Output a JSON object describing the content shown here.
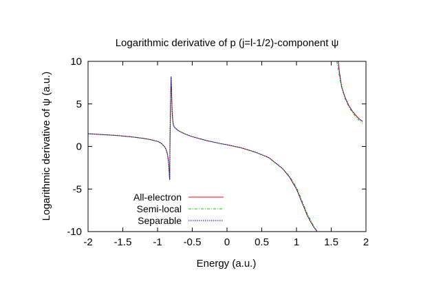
{
  "chart_data": {
    "type": "line",
    "title": "Logarithmic derivative of p (j=l-1/2)-component ψ",
    "xlabel": "Energy (a.u.)",
    "ylabel": "Logarithmic derivative of ψ (a.u.)",
    "xlim": [
      -2,
      2
    ],
    "ylim": [
      -10,
      10
    ],
    "grid": false,
    "legend_position": "bottom-left",
    "xticks": [
      {
        "value": -2,
        "label": "-2"
      },
      {
        "value": -1.5,
        "label": "-1.5"
      },
      {
        "value": -1,
        "label": "-1"
      },
      {
        "value": -0.5,
        "label": "-0.5"
      },
      {
        "value": 0,
        "label": "0"
      },
      {
        "value": 0.5,
        "label": "0.5"
      },
      {
        "value": 1,
        "label": "1"
      },
      {
        "value": 1.5,
        "label": "1.5"
      },
      {
        "value": 2,
        "label": "2"
      }
    ],
    "yticks": [
      {
        "value": -10,
        "label": "-10"
      },
      {
        "value": -5,
        "label": "-5"
      },
      {
        "value": 0,
        "label": "0"
      },
      {
        "value": 5,
        "label": "5"
      },
      {
        "value": 10,
        "label": "10"
      }
    ],
    "series": [
      {
        "name": "All-electron",
        "color": "#ff0000",
        "dash": "solid",
        "x": [
          -2,
          -1.8,
          -1.6,
          -1.4,
          -1.2,
          -1.1,
          -1.0,
          -0.95,
          -0.9,
          -0.88,
          -0.86,
          -0.85,
          -0.84,
          -0.835,
          -0.83,
          -0.825,
          -0.82,
          -0.815,
          -0.81,
          -0.805,
          -0.8,
          -0.795,
          -0.79,
          -0.785,
          -0.78,
          -0.775,
          -0.77,
          -0.76,
          -0.75,
          -0.7,
          -0.6,
          -0.5,
          -0.3,
          -0.1,
          0,
          0.2,
          0.4,
          0.6,
          0.8,
          0.9,
          1.0,
          1.05,
          1.1,
          1.15,
          1.2,
          1.23,
          1.26,
          1.28,
          1.29,
          1.295,
          null,
          1.6,
          1.62,
          1.65,
          1.7,
          1.75,
          1.8,
          1.85,
          1.9,
          1.95
        ],
        "y": [
          1.5,
          1.4,
          1.3,
          1.15,
          0.95,
          0.8,
          0.6,
          0.4,
          0.0,
          -0.3,
          -0.8,
          -1.3,
          -2.0,
          -2.6,
          -3.3,
          -3.9,
          1.0,
          4.0,
          6.4,
          8.2,
          7.0,
          5.5,
          4.2,
          3.5,
          3.0,
          2.7,
          2.5,
          2.3,
          2.2,
          1.85,
          1.45,
          1.15,
          0.7,
          0.35,
          0.2,
          -0.15,
          -0.65,
          -1.3,
          -2.6,
          -3.6,
          -5.0,
          -6.0,
          -7.0,
          -8.0,
          -8.8,
          -9.2,
          -9.6,
          -9.8,
          -9.9,
          -10.0,
          null,
          10.0,
          8.6,
          7.0,
          5.75,
          4.85,
          4.2,
          3.7,
          3.25,
          2.95
        ]
      },
      {
        "name": "Semi-local",
        "color": "#00cc00",
        "dash": "dashdot",
        "x": [
          -2,
          -1.8,
          -1.6,
          -1.4,
          -1.2,
          -1.1,
          -1.0,
          -0.95,
          -0.9,
          -0.88,
          -0.86,
          -0.85,
          -0.84,
          -0.835,
          -0.83,
          -0.825,
          -0.82,
          -0.815,
          -0.81,
          -0.805,
          -0.8,
          -0.795,
          -0.79,
          -0.785,
          -0.78,
          -0.775,
          -0.77,
          -0.76,
          -0.75,
          -0.7,
          -0.6,
          -0.5,
          -0.3,
          -0.1,
          0,
          0.2,
          0.4,
          0.6,
          0.8,
          0.9,
          1.0,
          1.05,
          1.1,
          1.15,
          1.2,
          1.23,
          1.26,
          1.28,
          1.29,
          1.3,
          null,
          1.58,
          1.6,
          1.65,
          1.7,
          1.75,
          1.8,
          1.85,
          1.9,
          1.95
        ],
        "y": [
          1.5,
          1.4,
          1.3,
          1.15,
          0.95,
          0.8,
          0.6,
          0.4,
          0.0,
          -0.3,
          -0.8,
          -1.3,
          -2.0,
          -2.6,
          -3.3,
          -3.9,
          1.0,
          4.0,
          6.4,
          8.2,
          7.0,
          5.5,
          4.2,
          3.5,
          3.0,
          2.7,
          2.5,
          2.3,
          2.2,
          1.85,
          1.45,
          1.15,
          0.7,
          0.35,
          0.2,
          -0.15,
          -0.65,
          -1.3,
          -2.6,
          -3.5,
          -4.8,
          -5.8,
          -6.8,
          -7.8,
          -8.6,
          -9.1,
          -9.5,
          -9.75,
          -9.9,
          -10.0,
          null,
          10.0,
          9.0,
          6.9,
          5.6,
          4.7,
          4.05,
          3.5,
          3.05,
          2.7
        ]
      },
      {
        "name": "Separable",
        "color": "#0000cc",
        "dash": "dotted",
        "x": [
          -2,
          -1.8,
          -1.6,
          -1.4,
          -1.2,
          -1.1,
          -1.0,
          -0.95,
          -0.9,
          -0.88,
          -0.86,
          -0.85,
          -0.84,
          -0.835,
          -0.83,
          -0.825,
          -0.82,
          -0.815,
          -0.81,
          -0.805,
          -0.8,
          -0.795,
          -0.79,
          -0.785,
          -0.78,
          -0.775,
          -0.77,
          -0.76,
          -0.75,
          -0.7,
          -0.6,
          -0.5,
          -0.3,
          -0.1,
          0,
          0.2,
          0.4,
          0.6,
          0.8,
          0.9,
          1.0,
          1.05,
          1.1,
          1.15,
          1.2,
          1.23,
          1.26,
          1.28,
          1.29,
          1.295,
          null,
          1.6,
          1.62,
          1.65,
          1.7,
          1.75,
          1.8,
          1.85,
          1.9,
          1.95
        ],
        "y": [
          1.5,
          1.4,
          1.3,
          1.15,
          0.95,
          0.8,
          0.6,
          0.4,
          0.0,
          -0.3,
          -0.8,
          -1.3,
          -2.0,
          -2.6,
          -3.3,
          -3.9,
          1.0,
          4.0,
          6.4,
          8.2,
          7.0,
          5.5,
          4.2,
          3.5,
          3.0,
          2.7,
          2.5,
          2.3,
          2.2,
          1.85,
          1.45,
          1.15,
          0.7,
          0.35,
          0.2,
          -0.15,
          -0.65,
          -1.3,
          -2.6,
          -3.6,
          -5.0,
          -6.0,
          -7.0,
          -8.0,
          -8.8,
          -9.2,
          -9.6,
          -9.8,
          -9.9,
          -10.0,
          null,
          10.0,
          8.6,
          7.0,
          5.75,
          4.85,
          4.2,
          3.7,
          3.25,
          2.95
        ]
      }
    ]
  }
}
